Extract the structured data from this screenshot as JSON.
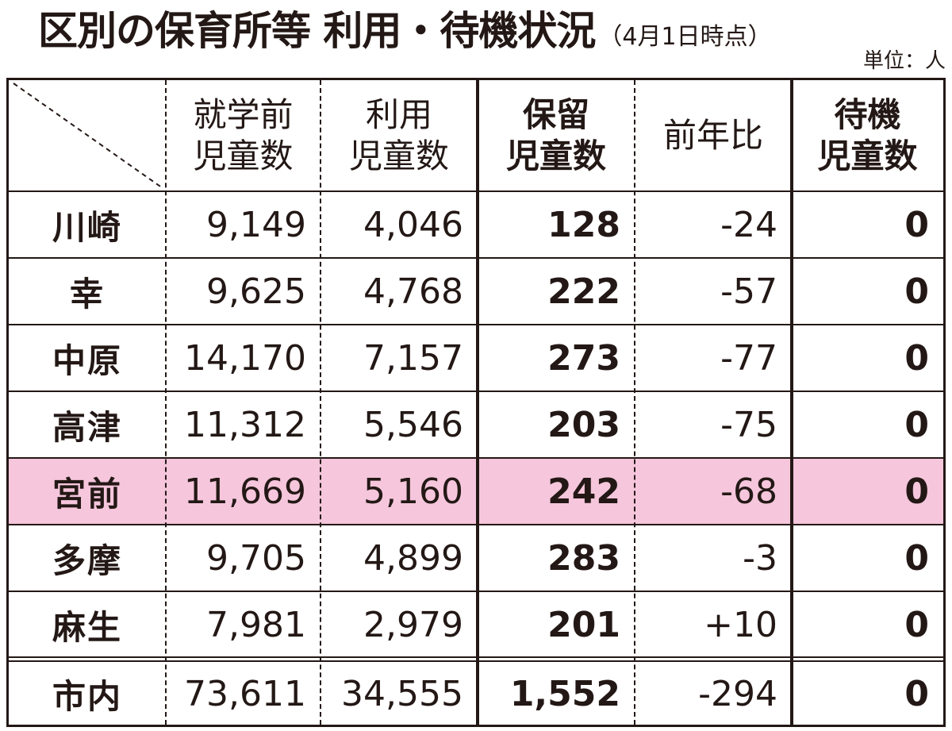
{
  "title": "区別の保育所等 利用・待機状況",
  "subtitle": "（4月1日時点）",
  "unit": "単位：人",
  "table": {
    "headers": {
      "preschool": [
        "就学前",
        "児童数"
      ],
      "users": [
        "利用",
        "児童数"
      ],
      "reserved": [
        "保留",
        "児童数"
      ],
      "yoy": [
        "前年比"
      ],
      "waiting": [
        "待機",
        "児童数"
      ]
    },
    "rows": [
      {
        "ward": "川崎",
        "preschool": "9,149",
        "users": "4,046",
        "reserved": "128",
        "yoy": "-24",
        "waiting": "0"
      },
      {
        "ward": "幸",
        "preschool": "9,625",
        "users": "4,768",
        "reserved": "222",
        "yoy": "-57",
        "waiting": "0"
      },
      {
        "ward": "中原",
        "preschool": "14,170",
        "users": "7,157",
        "reserved": "273",
        "yoy": "-77",
        "waiting": "0"
      },
      {
        "ward": "高津",
        "preschool": "11,312",
        "users": "5,546",
        "reserved": "203",
        "yoy": "-75",
        "waiting": "0"
      },
      {
        "ward": "宮前",
        "preschool": "11,669",
        "users": "5,160",
        "reserved": "242",
        "yoy": "-68",
        "waiting": "0",
        "highlight": true
      },
      {
        "ward": "多摩",
        "preschool": "9,705",
        "users": "4,899",
        "reserved": "283",
        "yoy": "-3",
        "waiting": "0"
      },
      {
        "ward": "麻生",
        "preschool": "7,981",
        "users": "2,979",
        "reserved": "201",
        "yoy": "+10",
        "waiting": "0"
      }
    ],
    "total": {
      "ward": "市内",
      "preschool": "73,611",
      "users": "34,555",
      "reserved": "1,552",
      "yoy": "-294",
      "waiting": "0"
    },
    "highlight_color": "#f5c6dc"
  }
}
